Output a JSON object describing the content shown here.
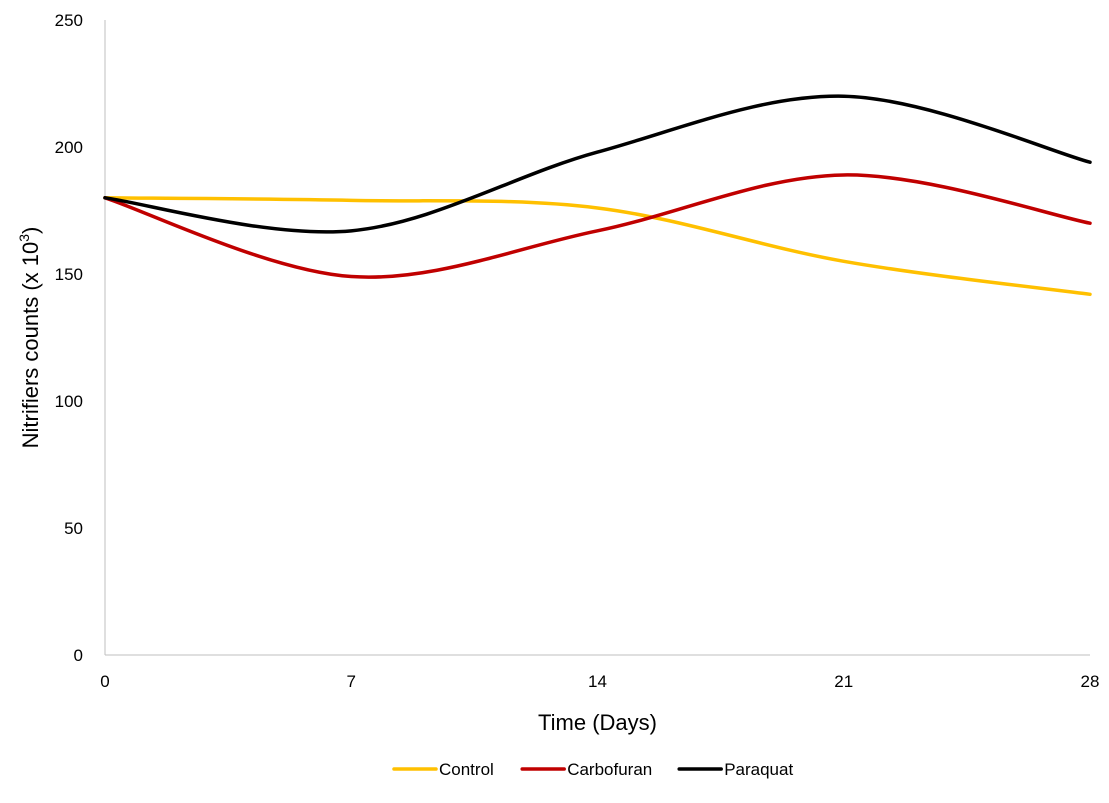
{
  "chart_data": {
    "type": "line",
    "title": "",
    "xlabel": "Time (Days)",
    "ylabel": {
      "base": "Nitrifiers counts (x 10",
      "sup": "3",
      "tail": ")"
    },
    "x": [
      0,
      7,
      14,
      21,
      28
    ],
    "xlim": [
      0,
      28
    ],
    "ylim": [
      0,
      250
    ],
    "yticks": [
      0,
      50,
      100,
      150,
      200,
      250
    ],
    "grid": false,
    "smooth": true,
    "legend_position": "bottom",
    "series": [
      {
        "name": "Control",
        "color": "#FFC000",
        "values": [
          180,
          179,
          176,
          155,
          142
        ]
      },
      {
        "name": "Carbofuran",
        "color": "#C00000",
        "values": [
          180,
          149,
          167,
          189,
          170
        ]
      },
      {
        "name": "Paraquat",
        "color": "#000000",
        "values": [
          180,
          167,
          198,
          220,
          194
        ]
      }
    ]
  }
}
